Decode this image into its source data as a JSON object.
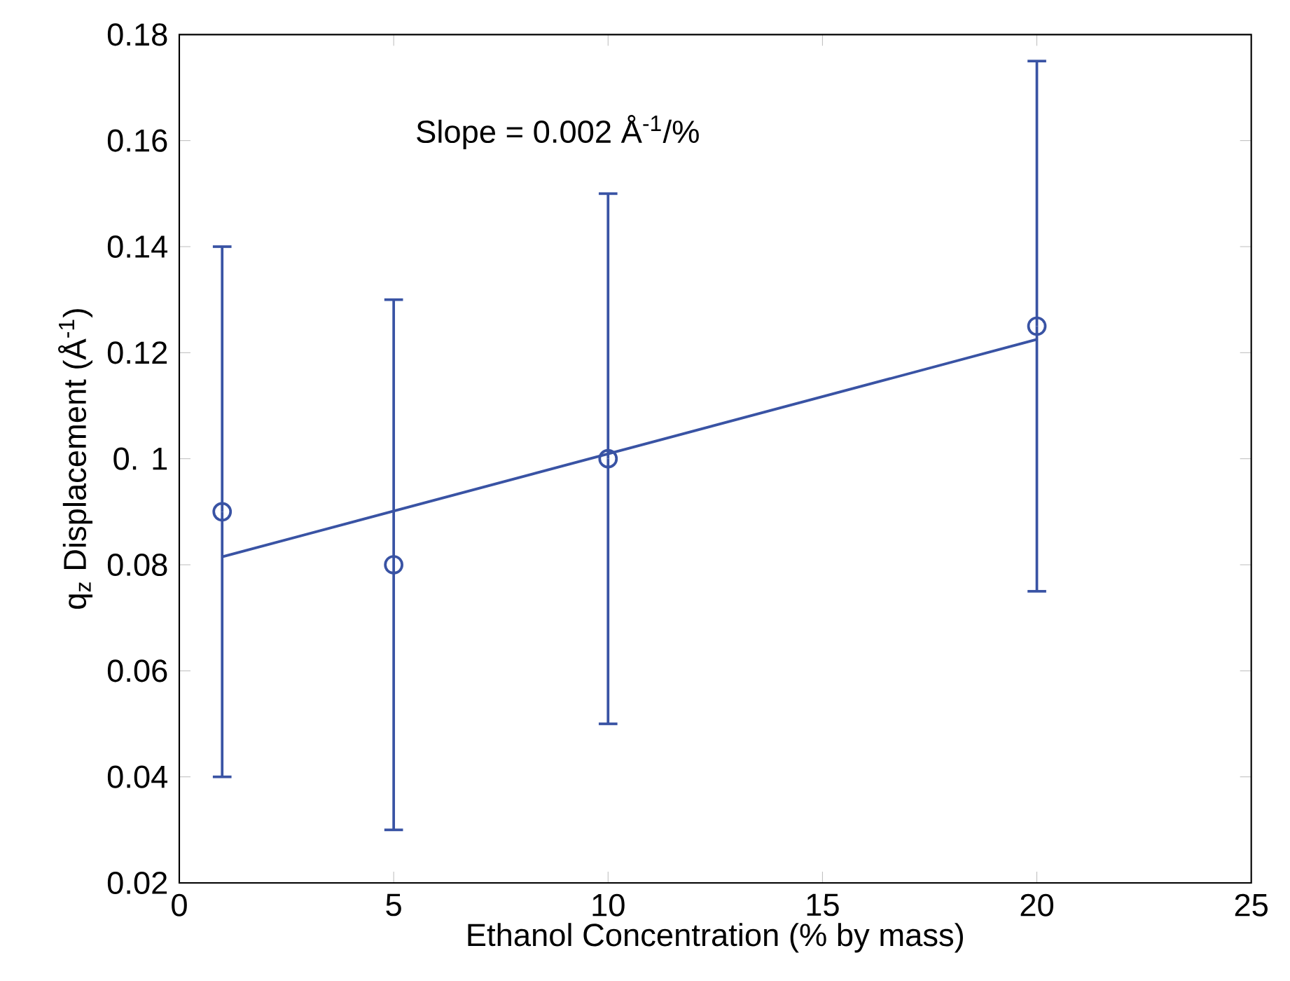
{
  "chart_data": {
    "type": "scatter",
    "xlabel": "Ethanol Concentration (% by mass)",
    "ylabel": "q$_{z}$ Displacement (Å$^{-1}$)",
    "annotations": [
      "Slope = 0.002 Å$^{-1}$/%"
    ],
    "series": [
      {
        "color": "#3953a4",
        "x": [
          1,
          5,
          10,
          20
        ],
        "values": [
          0.09,
          0.08,
          0.1,
          0.125
        ],
        "errors": [
          0.05,
          0.05,
          0.05,
          0.05
        ],
        "marker": "circle"
      },
      {
        "type": "line",
        "color": "#3953a4",
        "x": [
          1,
          20
        ],
        "values": [
          0.0815,
          0.1225
        ],
        "line_style": "solid"
      }
    ],
    "xlim": [
      0,
      25
    ],
    "ylim": [
      0.02,
      0.18
    ],
    "xticks": [
      0,
      5,
      10,
      15,
      20,
      25
    ],
    "yticks": [
      0.02,
      0.04,
      0.06,
      0.08,
      {
        "value": 0.1,
        "label": "0. 1"
      },
      0.12,
      0.14,
      0.16,
      0.18
    ],
    "grid": false
  }
}
